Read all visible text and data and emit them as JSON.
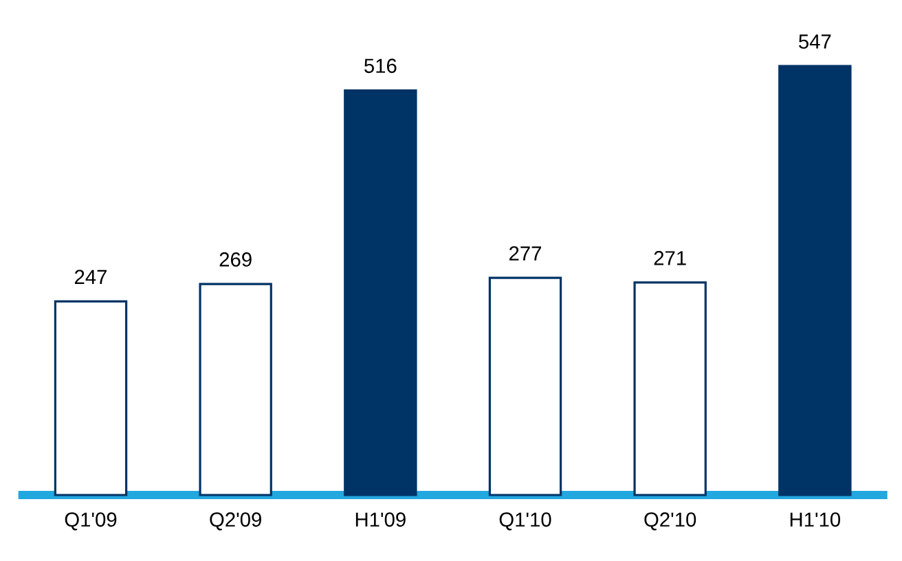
{
  "chart_data": {
    "type": "bar",
    "categories": [
      "Q1'09",
      "Q2'09",
      "H1'09",
      "Q1'10",
      "Q2'10",
      "H1'10"
    ],
    "values": [
      247,
      269,
      516,
      277,
      271,
      547
    ],
    "colors": [
      "#ffffff",
      "#ffffff",
      "#003366",
      "#ffffff",
      "#ffffff",
      "#003366"
    ],
    "data_labels": true
  }
}
